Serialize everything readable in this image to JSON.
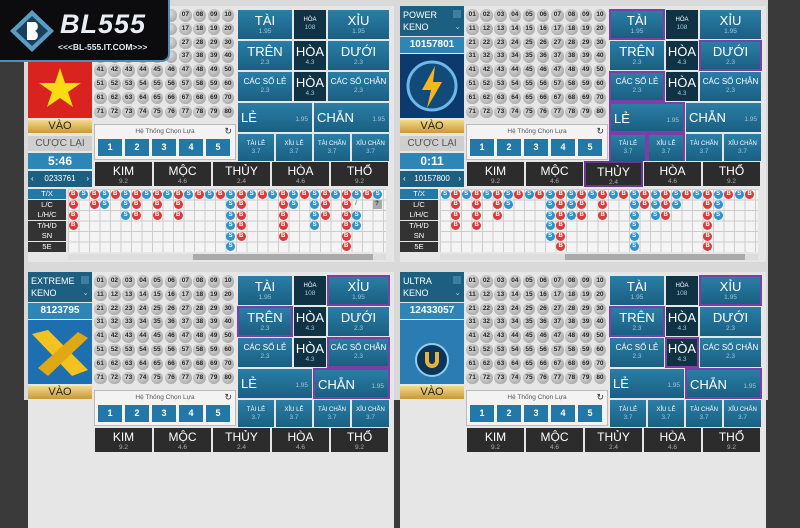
{
  "logo": {
    "text": "BL555",
    "url": "<<<BL-555.IT.COM>>>"
  },
  "colors": {
    "bet_bg": "#1f6e93",
    "tie_bg": "#0f3344",
    "selected_border": "#7b3fa6",
    "big": "#d93a3a",
    "small": "#2d94cc"
  },
  "chooser_title": "Hệ Thống Chọn Lựa",
  "chooser_buttons": [
    "1",
    "2",
    "3",
    "4",
    "5"
  ],
  "vao": "VÀO",
  "cuoc_lai": "CƯỢC LẠI",
  "road_labels": [
    "T/X",
    "L/C",
    "L/H/C",
    "T/H/D",
    "SN",
    "5E"
  ],
  "elements": [
    {
      "l": "KIM",
      "o": "9.2"
    },
    {
      "l": "MỘC",
      "o": "4.6"
    },
    {
      "l": "THỦY",
      "o": "2.4"
    },
    {
      "l": "HÒA",
      "o": "4.6"
    },
    {
      "l": "THỔ",
      "o": "9.2"
    }
  ],
  "bets": {
    "tai": {
      "l": "TÀI",
      "o": "1.95"
    },
    "hoa1": {
      "l": "HÒA",
      "o": "108"
    },
    "xiu": {
      "l": "XỈU",
      "o": "1.95"
    },
    "tren": {
      "l": "TRÊN",
      "o": "2.3"
    },
    "hoa2": {
      "l": "HÒA",
      "o": "4.3"
    },
    "duoi": {
      "l": "DƯỚI",
      "o": "2.3"
    },
    "le3": {
      "l": "CÁC SỐ LẺ",
      "o": "2.3"
    },
    "hoa3": {
      "l": "HÒA",
      "o": "4.3"
    },
    "chan3": {
      "l": "CÁC SỐ CHẴN",
      "o": "2.3"
    },
    "le": {
      "l": "LẺ",
      "o": "1.95"
    },
    "chan": {
      "l": "CHẴN",
      "o": "1.95"
    },
    "taile": {
      "l": "TÀI LẺ",
      "o": "3.7"
    },
    "xiule": {
      "l": "XỈU LẺ",
      "o": "3.7"
    },
    "taichan": {
      "l": "TÀI CHẴN",
      "o": "3.7"
    },
    "xiuchan": {
      "l": "XỈU CHẴN",
      "o": "3.7"
    }
  },
  "panels": [
    {
      "name": [
        "",
        ""
      ],
      "id": "",
      "image": "vietnam-flag",
      "timer": "5:46",
      "round": "0233761",
      "selected": [],
      "el_selected": [],
      "road": {
        "T/X": "BSBSBSBSBSBSBSBSBSBSBSBSBSBSBS",
        "L/C": "B.BS.SB.B.B....SB...BS.SB.B/.?",
        "L/H/C": "B....SB.B.B....SB...B..SB.BS",
        "T/H/D": "B..............SB...B..S..BS",
        "SN": "...............SB...B.....B",
        "5E": "...............S..........B"
      }
    },
    {
      "name": [
        "POWER",
        "KENO"
      ],
      "id": "10157801",
      "image": "lightning-logo",
      "timer": "0:11",
      "round": "10157800",
      "selected": [
        "tai",
        "duoi",
        "le3",
        "le",
        "taile",
        "xiule"
      ],
      "el_selected": [
        2
      ],
      "road": {
        "T/X": "SBSBSBSBSBSBSBSBSBSBSBSBSBSBSB",
        "L/C": ".B.B.BS...SBSB.B..SBSBS..BS",
        "L/H/C": ".B.B.B....SBSB.B..S.SB...BS",
        "T/H/D": ".B.B......SB......S......B",
        "SN": "..........SB......S......B",
        "5E": "...........B......S......B"
      }
    },
    {
      "name": [
        "EXTREME",
        "KENO"
      ],
      "id": "8123795",
      "image": "x-logo",
      "selected": [
        "xiu",
        "tren",
        "chan3",
        "chan"
      ],
      "el_selected": []
    },
    {
      "name": [
        "ULTRA",
        "KENO"
      ],
      "id": "12433057",
      "image": "u-logo",
      "selected": [
        "xiu",
        "tren",
        "hoa3",
        "chan"
      ],
      "el_selected": []
    }
  ]
}
